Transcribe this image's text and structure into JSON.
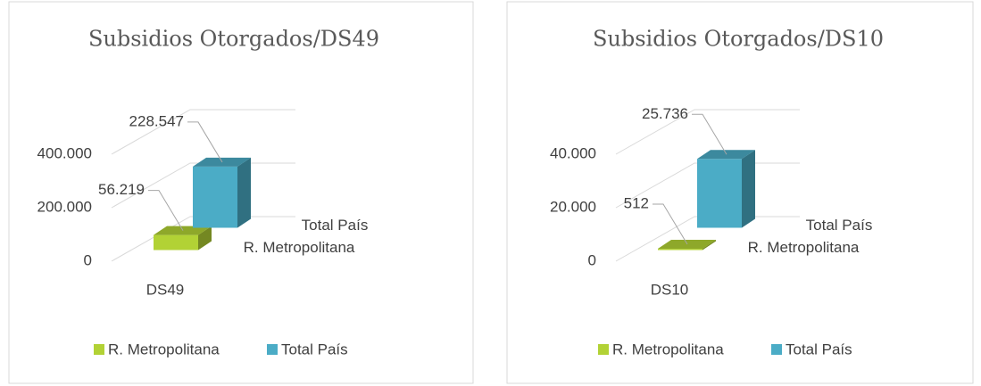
{
  "chart_data": [
    {
      "type": "bar3d",
      "title": "Subsidios Otorgados/DS49",
      "categories": [
        "DS49"
      ],
      "series": [
        {
          "name": "R. Metropolitana",
          "color": "#b2d235",
          "values": [
            56219
          ],
          "value_labels": [
            "56.219"
          ]
        },
        {
          "name": "Total País",
          "color": "#4bacc6",
          "values": [
            228547
          ],
          "value_labels": [
            "228.547"
          ]
        }
      ],
      "ylim": [
        0,
        600000
      ],
      "yticks": [
        0,
        {
          "value": 200000,
          "label": "200.000"
        },
        {
          "value": 400000,
          "label": "400.000"
        }
      ],
      "grid": true,
      "legend": "bottom"
    },
    {
      "type": "bar3d",
      "title": "Subsidios Otorgados/DS10",
      "categories": [
        "DS10"
      ],
      "series": [
        {
          "name": "R. Metropolitana",
          "color": "#b2d235",
          "values": [
            512
          ]
        },
        {
          "name": "Total País",
          "color": "#4bacc6",
          "values": [
            25736
          ],
          "value_labels": [
            "25.736"
          ]
        }
      ],
      "ylim": [
        0,
        60000
      ],
      "yticks": [
        0,
        {
          "value": 20000,
          "label": "20.000"
        },
        {
          "value": 40000,
          "label": "40.000"
        }
      ],
      "grid": true,
      "legend": "bottom"
    }
  ]
}
